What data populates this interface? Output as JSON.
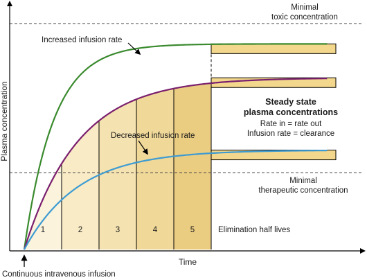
{
  "chart_data": {
    "type": "line",
    "xlabel": "Time",
    "ylabel": "Plasma concentration",
    "xlim": [
      0,
      10
    ],
    "ylim": [
      0,
      1
    ],
    "grid": false,
    "series": [
      {
        "name": "Increased infusion rate",
        "color": "#3a8a2e",
        "steady_state": 0.91,
        "half_life": 0.55
      },
      {
        "name": "",
        "color": "#7a1f6e",
        "steady_state": 0.76,
        "half_life": 1.0
      },
      {
        "name": "Decreased infusion rate",
        "color": "#3d9bd2",
        "steady_state": 0.44,
        "half_life": 1.0
      }
    ],
    "reference_lines": [
      {
        "name": "toxic",
        "value": 1.0,
        "label_line1": "Minimal",
        "label_line2": "toxic concentration"
      },
      {
        "name": "therapeutic",
        "value": 0.34,
        "label_line1": "Minimal",
        "label_line2": "therapeutic concentration"
      }
    ],
    "half_lives": {
      "labels": [
        "1",
        "2",
        "3",
        "4",
        "5"
      ],
      "caption": "Elimination half lives",
      "shade_colors": [
        "#fbf3dc",
        "#f8ebc6",
        "#f4e2b0",
        "#f0d899",
        "#ebcd82"
      ]
    },
    "annotations": {
      "steady_title_line1": "Steady state",
      "steady_title_line2": "plasma concentrations",
      "steady_line3": "Rate in = rate out",
      "steady_line4": "Infusion rate = clearance",
      "infusion_start": "Continuous intravenous infusion"
    },
    "plateau_color": "#f2d78c"
  }
}
